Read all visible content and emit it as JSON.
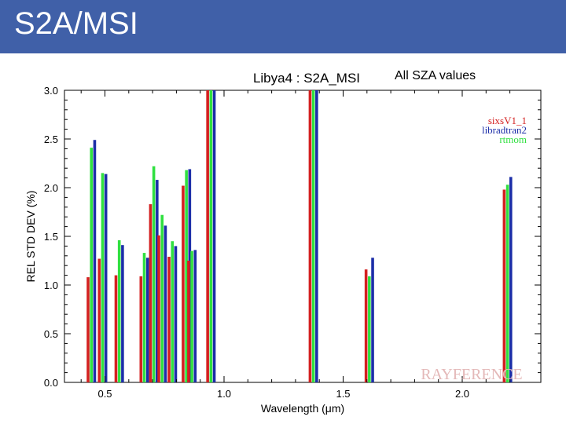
{
  "header": {
    "title": "S2A/MSI"
  },
  "annotation": "All SZA values",
  "colors": {
    "header_bg": "#4060a8",
    "sixsV1_1": "#d42020",
    "libradtran2": "#1c2ea8",
    "rtmom": "#30e040"
  },
  "chart_data": {
    "type": "bar",
    "title": "Libya4 : S2A_MSI",
    "xlabel": "Wavelength (μm)",
    "ylabel": "REL STD DEV (%)",
    "xlim": [
      0.33,
      2.33
    ],
    "ylim": [
      0.0,
      3.0
    ],
    "xticks": [
      0.5,
      1.0,
      1.5,
      2.0
    ],
    "xtick_labels": [
      "0.5",
      "1.0",
      "1.5",
      "2.0"
    ],
    "yticks": [
      0.0,
      0.5,
      1.0,
      1.5,
      2.0,
      2.5,
      3.0
    ],
    "ytick_labels": [
      "0.0",
      "0.5",
      "1.0",
      "1.5",
      "2.0",
      "2.5",
      "3.0"
    ],
    "watermark": "RAYFERENCE",
    "legend_position": "top-right",
    "bands": [
      0.443,
      0.49,
      0.56,
      0.665,
      0.705,
      0.74,
      0.783,
      0.842,
      0.865,
      0.945,
      1.375,
      1.61,
      2.19
    ],
    "series": [
      {
        "name": "sixsV1_1",
        "color": "#d42020",
        "values": [
          1.08,
          1.27,
          1.1,
          1.09,
          1.83,
          1.51,
          1.29,
          2.02,
          1.25,
          3.0,
          3.0,
          1.16,
          1.98
        ]
      },
      {
        "name": "rtmom",
        "color": "#30e040",
        "values": [
          2.41,
          2.15,
          1.46,
          1.33,
          2.22,
          1.72,
          1.45,
          2.18,
          1.35,
          3.0,
          3.0,
          1.09,
          2.03
        ]
      },
      {
        "name": "libradtran2",
        "color": "#1c2ea8",
        "values": [
          2.49,
          2.14,
          1.41,
          1.28,
          2.08,
          1.61,
          1.4,
          2.19,
          1.36,
          3.0,
          3.0,
          1.28,
          2.11
        ]
      }
    ],
    "legend_entries": [
      {
        "name": "sixsV1_1",
        "color": "#d42020"
      },
      {
        "name": "libradtran2",
        "color": "#1c2ea8"
      },
      {
        "name": "rtmom",
        "color": "#30e040"
      }
    ]
  }
}
